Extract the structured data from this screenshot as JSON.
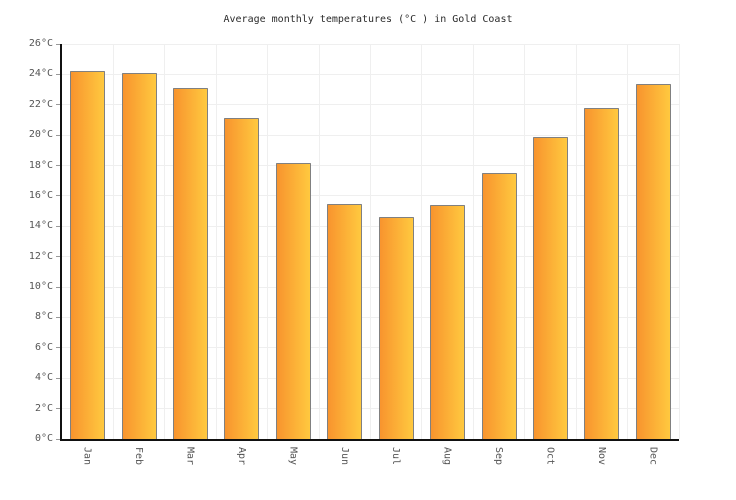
{
  "chart_data": {
    "type": "bar",
    "title": "Average monthly temperatures (°C ) in Gold Coast",
    "categories": [
      "Jan",
      "Feb",
      "Mar",
      "Apr",
      "May",
      "Jun",
      "Jul",
      "Aug",
      "Sep",
      "Oct",
      "Nov",
      "Dec"
    ],
    "values": [
      24.2,
      24.1,
      23.1,
      21.1,
      18.2,
      15.5,
      14.6,
      15.4,
      17.5,
      19.9,
      21.8,
      23.4
    ],
    "unit": "°C",
    "xlabel": "",
    "ylabel": "",
    "ylim": [
      0,
      26
    ],
    "ytick_step": 2,
    "ytick_labels": [
      "0°C",
      "2°C",
      "4°C",
      "6°C",
      "8°C",
      "10°C",
      "12°C",
      "14°C",
      "16°C",
      "18°C",
      "20°C",
      "22°C",
      "24°C",
      "26°C"
    ],
    "grid": true,
    "legend": false,
    "colors": {
      "bar_gradient_left": "#F8942E",
      "bar_gradient_right": "#FFC93F",
      "bar_border": "#808080",
      "axis": "#111111",
      "grid_line": "#EFEFEF",
      "tick_mark": "#999999",
      "axis_label": "#555555",
      "title": "#2B2B2B"
    }
  }
}
